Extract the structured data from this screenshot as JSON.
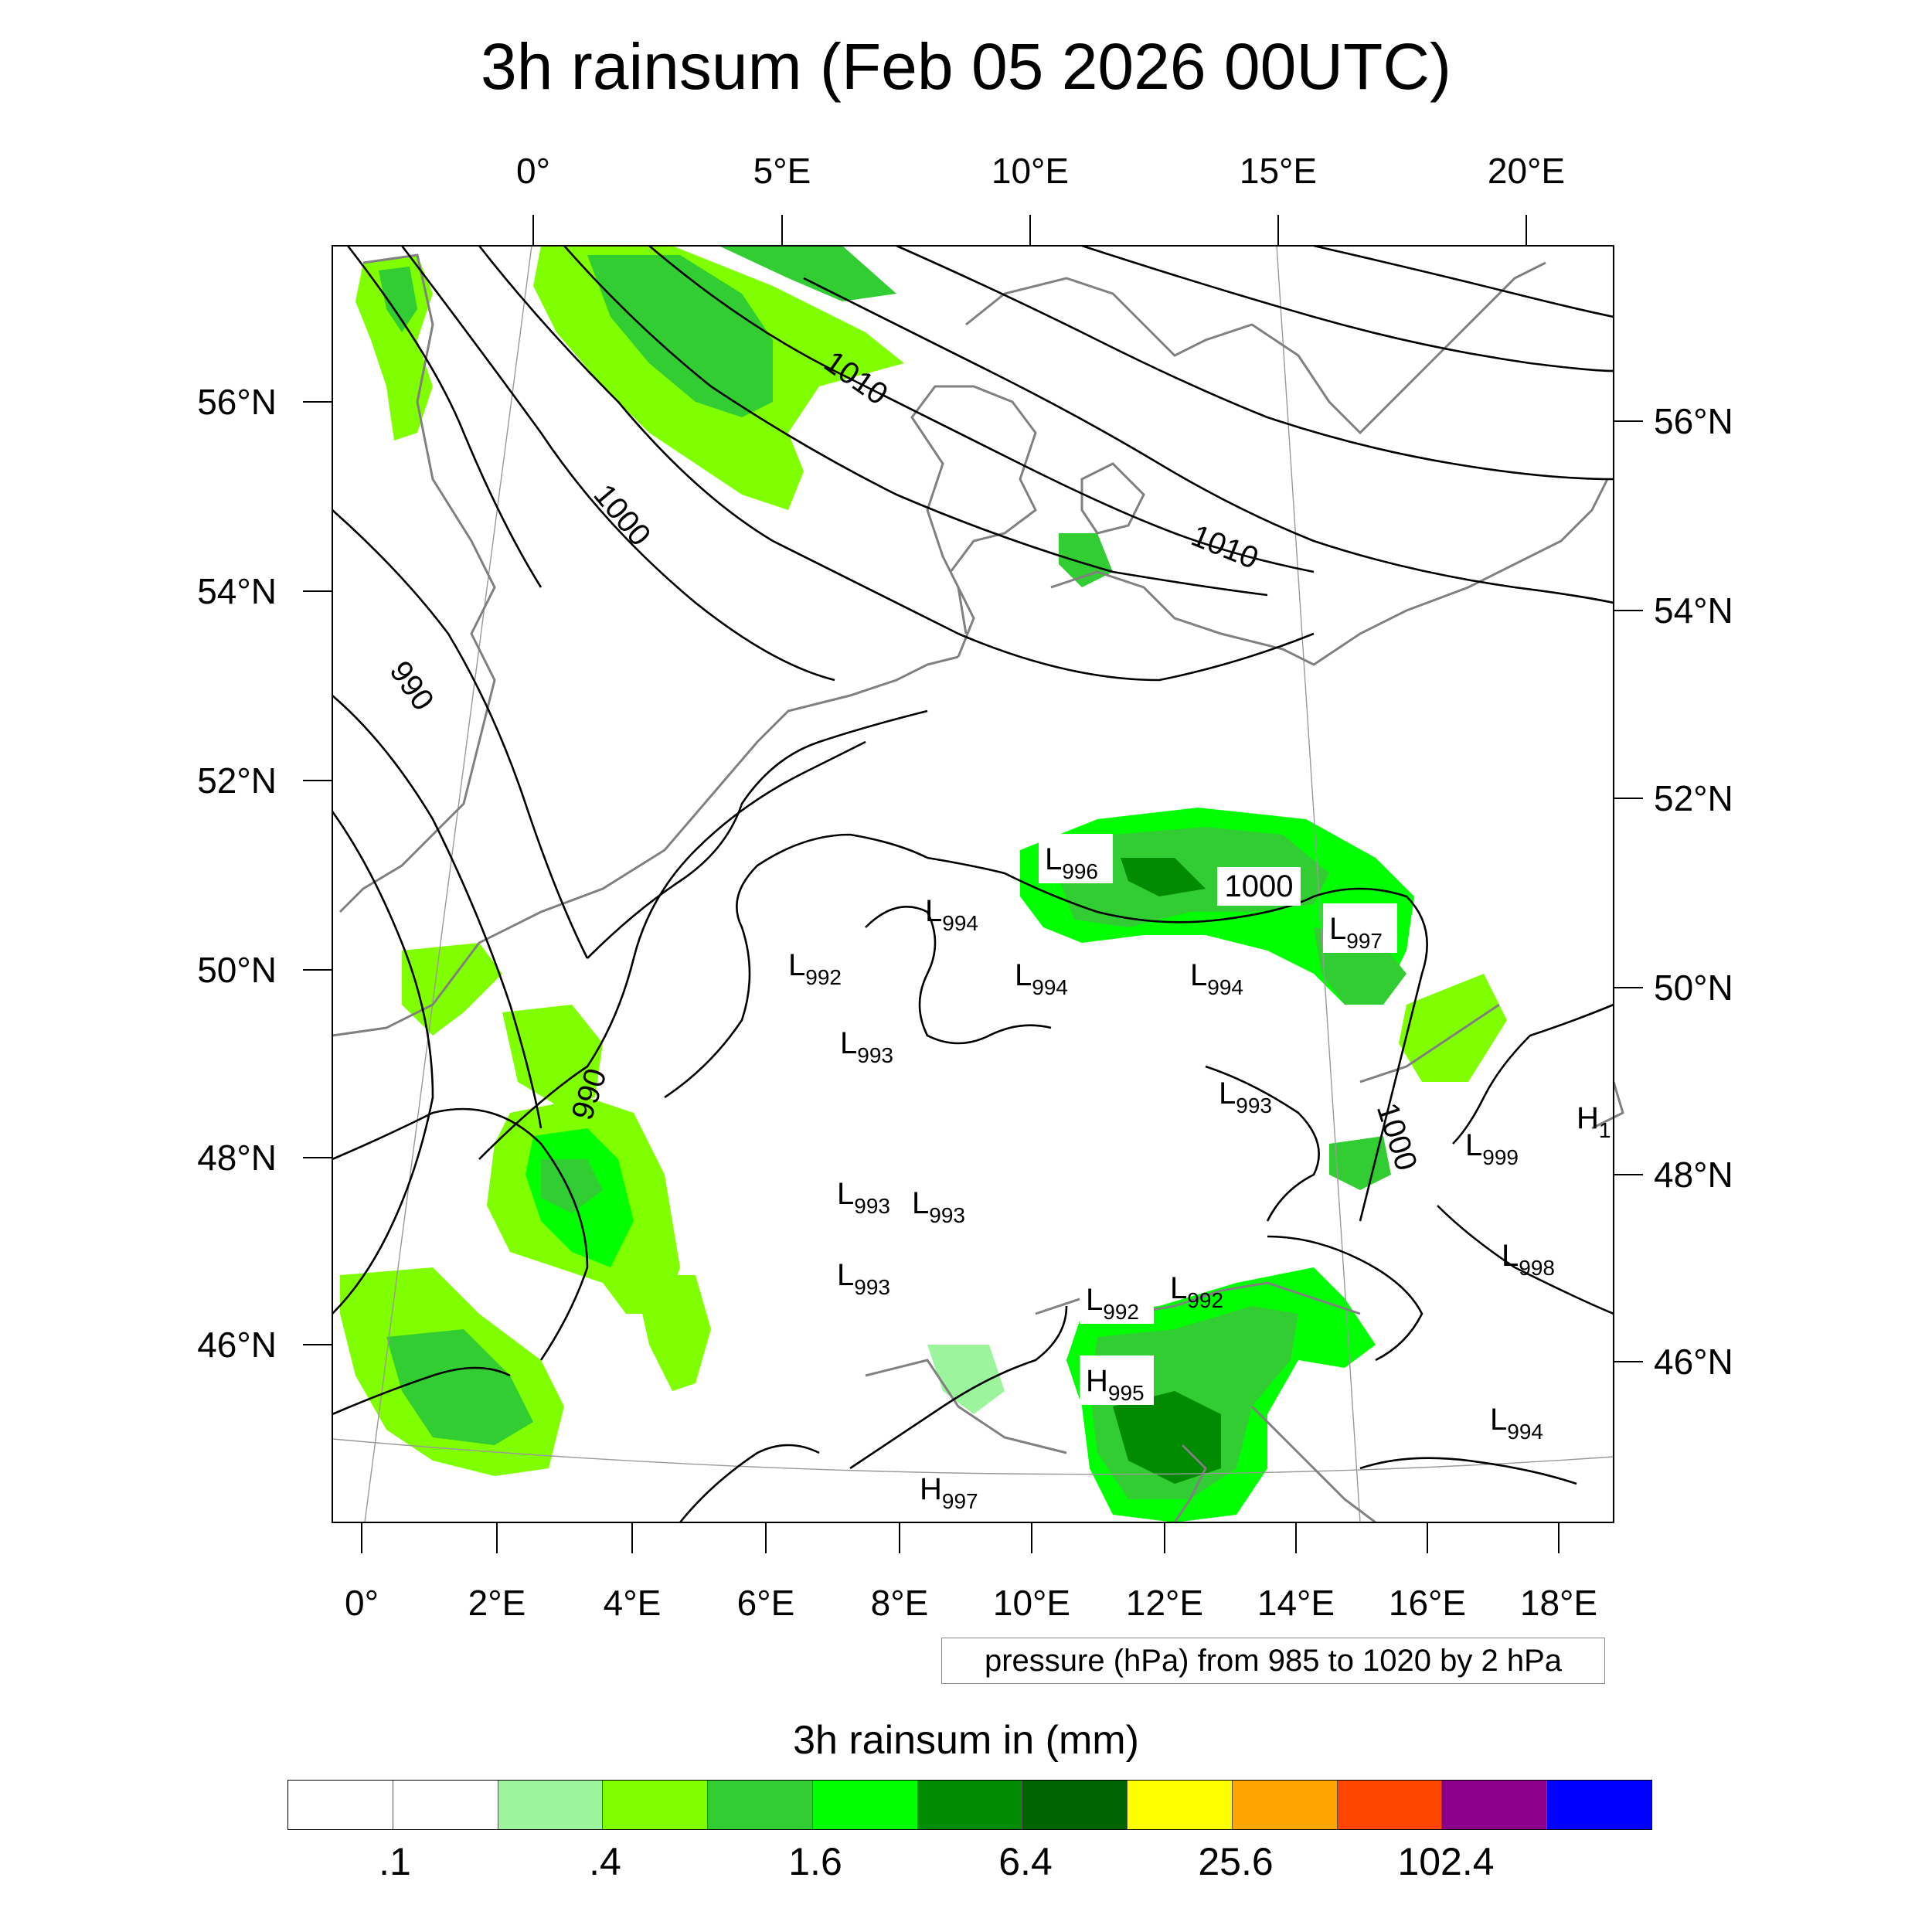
{
  "title": "3h rainsum (Feb 05 2026 00UTC)",
  "top_axis": [
    "0°",
    "5°E",
    "10°E",
    "15°E",
    "20°E"
  ],
  "bottom_axis": [
    "0°",
    "2°E",
    "4°E",
    "6°E",
    "8°E",
    "10°E",
    "12°E",
    "14°E",
    "16°E",
    "18°E"
  ],
  "left_axis": [
    "56°N",
    "54°N",
    "52°N",
    "50°N",
    "48°N",
    "46°N"
  ],
  "right_axis": [
    "56°N",
    "54°N",
    "52°N",
    "50°N",
    "48°N",
    "46°N"
  ],
  "contour_labels": [
    "1010",
    "1000",
    "990",
    "1010",
    "1000",
    "990",
    "1000"
  ],
  "pressure_centers": [
    {
      "type": "L",
      "value": "996"
    },
    {
      "type": "L",
      "value": "994"
    },
    {
      "type": "L",
      "value": "992"
    },
    {
      "type": "L",
      "value": "994"
    },
    {
      "type": "L",
      "value": "994"
    },
    {
      "type": "L",
      "value": "997"
    },
    {
      "type": "L",
      "value": "993"
    },
    {
      "type": "L",
      "value": "993"
    },
    {
      "type": "L",
      "value": "993"
    },
    {
      "type": "L",
      "value": "993"
    },
    {
      "type": "L",
      "value": "999"
    },
    {
      "type": "H",
      "value": "1"
    },
    {
      "type": "L",
      "value": "993"
    },
    {
      "type": "L",
      "value": "992"
    },
    {
      "type": "L",
      "value": "992"
    },
    {
      "type": "L",
      "value": "998"
    },
    {
      "type": "H",
      "value": "995"
    },
    {
      "type": "L",
      "value": "994"
    },
    {
      "type": "H",
      "value": "997"
    }
  ],
  "contour_note": "pressure (hPa) from 985 to 1020 by 2 hPa",
  "colorbar": {
    "title": "3h rainsum in (mm)",
    "colors": [
      "#ffffff",
      "#ffffff",
      "#9cf59c",
      "#80ff00",
      "#32cd32",
      "#00ff00",
      "#008b00",
      "#006400",
      "#ffff00",
      "#ffa500",
      "#ff4500",
      "#8b008b",
      "#0000ff"
    ],
    "tick_labels": [
      ".1",
      ".4",
      "1.6",
      "6.4",
      "25.6",
      "102.4"
    ]
  },
  "colors": {
    "contour": "#000000",
    "coastline": "#808080",
    "graticule": "#999999",
    "rain_light": "#9cf59c",
    "rain_lime": "#80ff00",
    "rain_mid": "#32cd32",
    "rain_green": "#00ff00",
    "rain_dark": "#008b00",
    "rain_darkest": "#006400"
  }
}
